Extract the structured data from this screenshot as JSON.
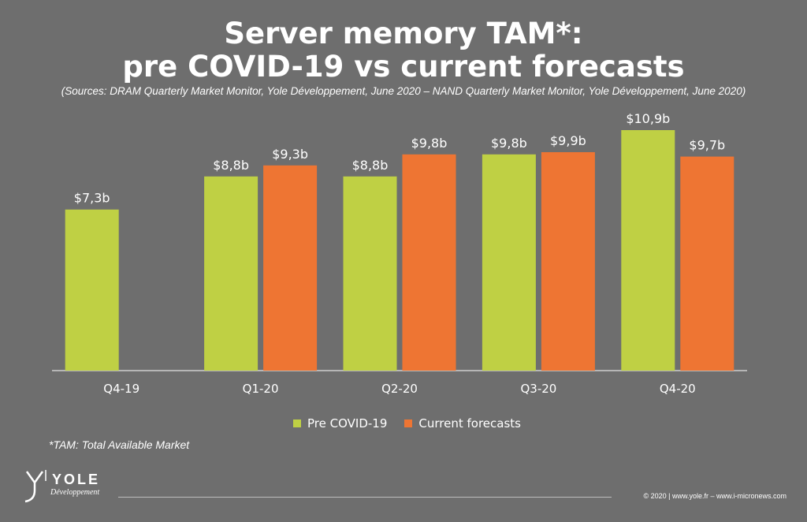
{
  "title_line1": "Server memory TAM*:",
  "title_line2": "pre COVID-19 vs current forecasts",
  "subtitle": "(Sources: DRAM Quarterly Market Monitor, Yole Développement, June 2020 – NAND Quarterly Market Monitor, Yole Développement, June 2020)",
  "footnote": "*TAM: Total Available Market",
  "logo": {
    "name": "YOLE",
    "sub": "Développement"
  },
  "copyright": "© 2020 | www.yole.fr – www.i-micronews.com",
  "colors": {
    "background": "#6e6e6e",
    "pre_covid": "#bfd044",
    "current": "#ee7533",
    "axis": "#ffffff"
  },
  "chart_data": {
    "type": "bar",
    "categories": [
      "Q4-19",
      "Q1-20",
      "Q2-20",
      "Q3-20",
      "Q4-20"
    ],
    "series": [
      {
        "name": "Pre COVID-19",
        "values": [
          7.3,
          8.8,
          8.8,
          9.8,
          10.9
        ],
        "labels": [
          "$7,3b",
          "$8,8b",
          "$8,8b",
          "$9,8b",
          "$10,9b"
        ]
      },
      {
        "name": "Current forecasts",
        "values": [
          null,
          9.3,
          9.8,
          9.9,
          9.7
        ],
        "labels": [
          null,
          "$9,3b",
          "$9,8b",
          "$9,9b",
          "$9,7b"
        ]
      }
    ],
    "legend": "bottom-center",
    "grid": false
  }
}
